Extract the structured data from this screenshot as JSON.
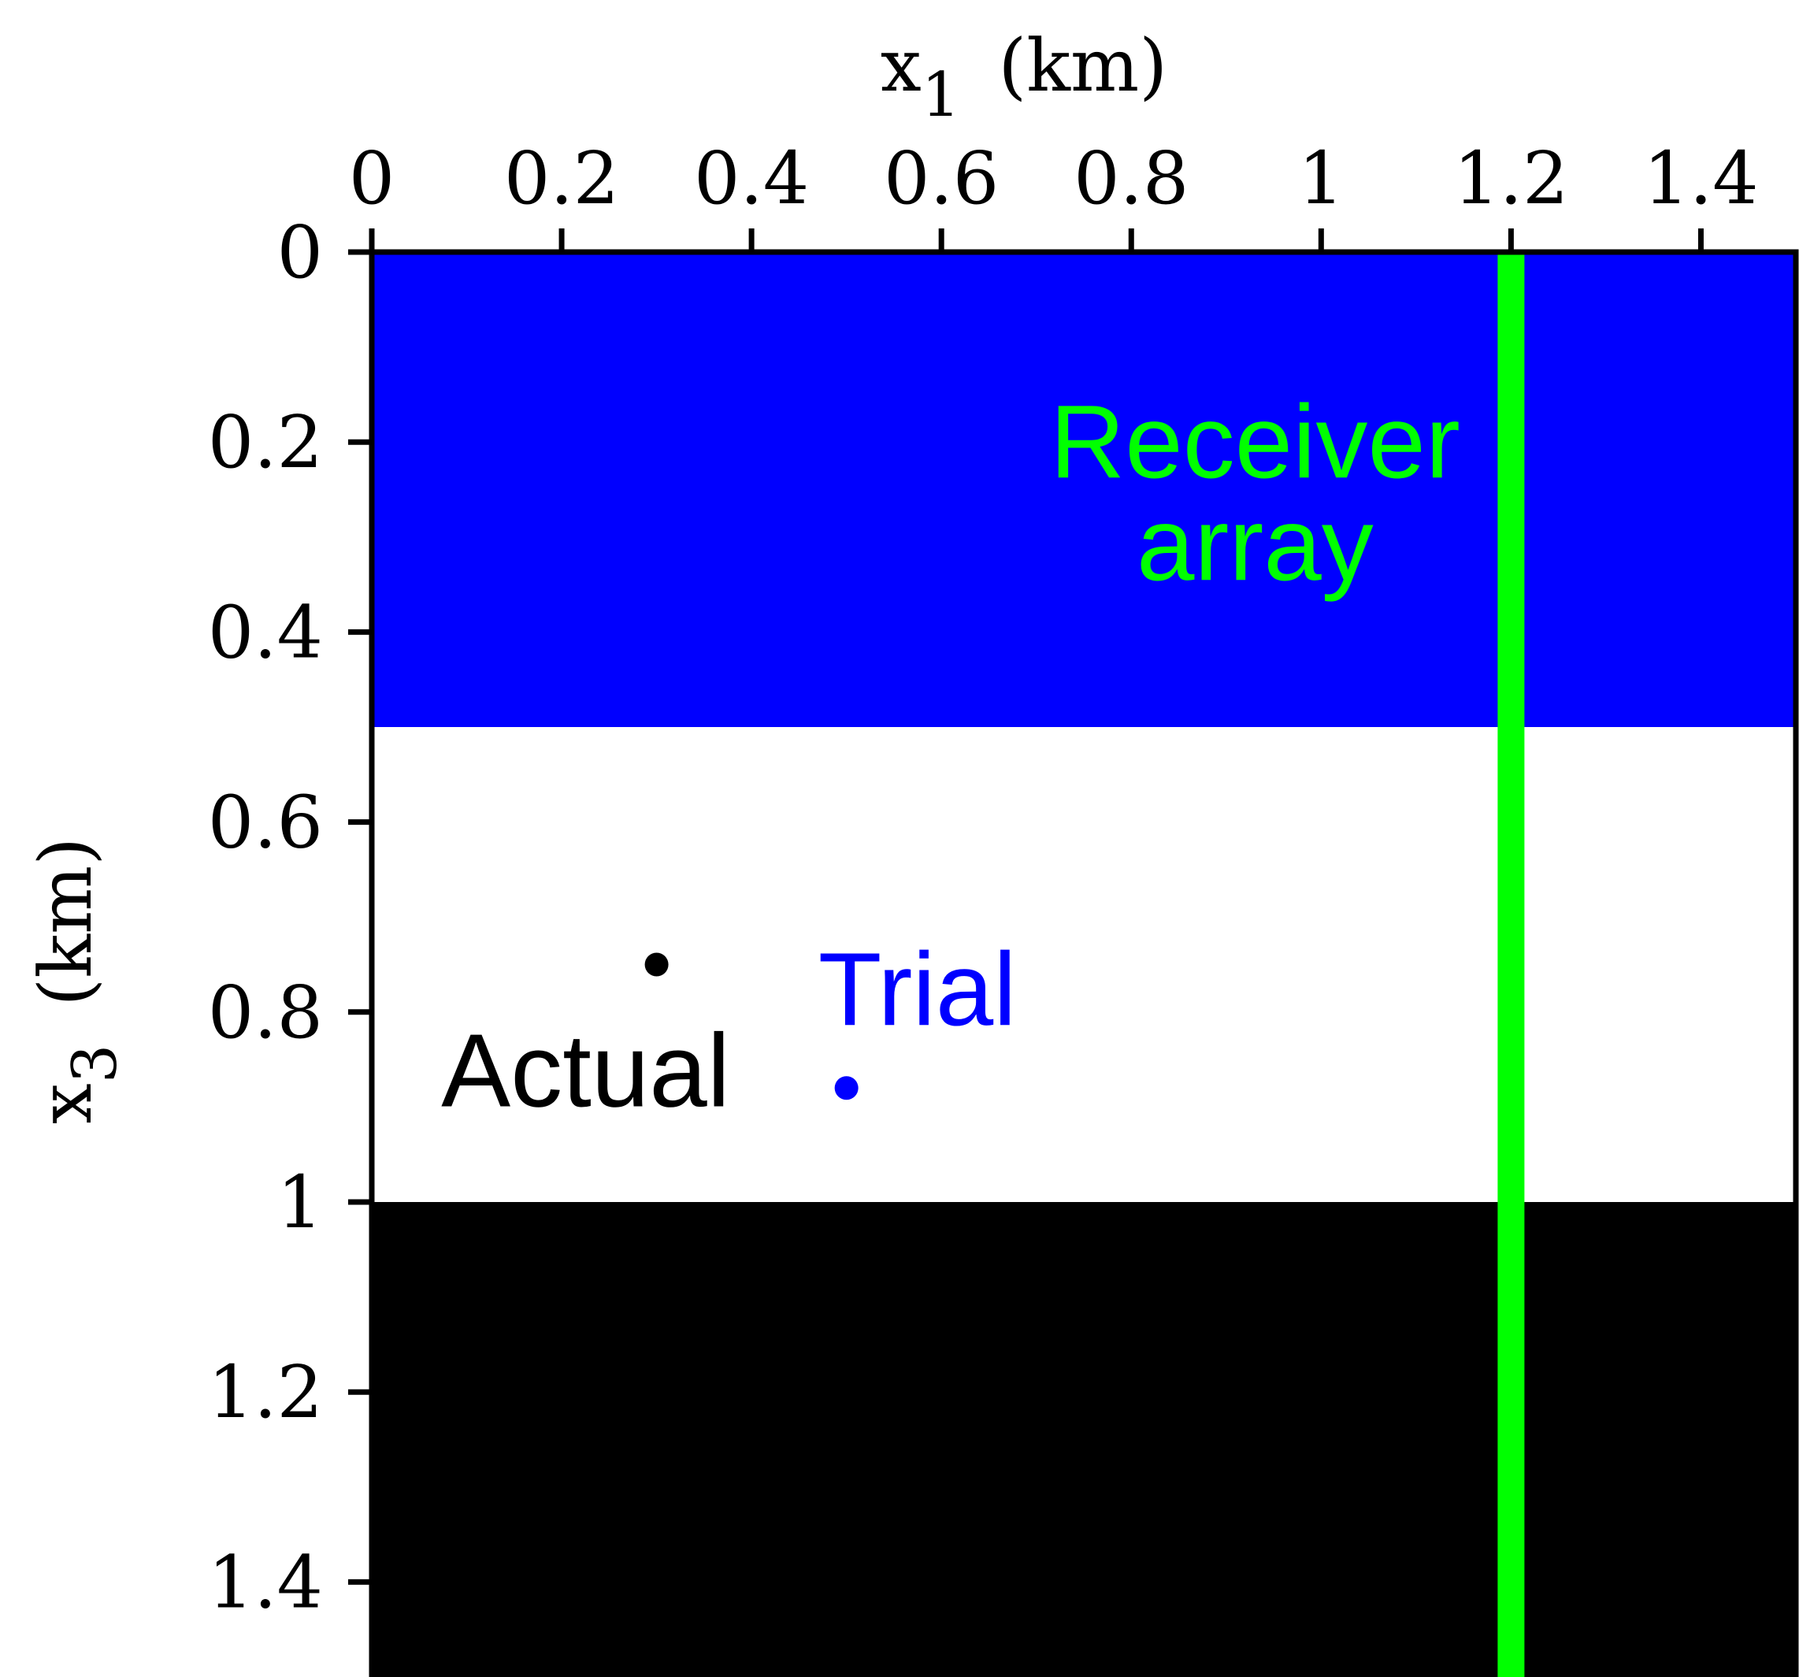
{
  "chart_data": {
    "type": "scatter",
    "title": "",
    "xlabel": "x",
    "xlabel_subscript": "1",
    "xlabel_unit": "(km)",
    "ylabel": "x",
    "ylabel_subscript": "3",
    "ylabel_unit": "(km)",
    "x_axis_position": "top",
    "y_axis_inverted": true,
    "xlim": [
      0,
      1.5
    ],
    "ylim": [
      0,
      1.5
    ],
    "x_ticks": [
      0,
      0.2,
      0.4,
      0.6,
      0.8,
      1,
      1.2,
      1.4
    ],
    "x_tick_labels": [
      "0",
      "0.2",
      "0.4",
      "0.6",
      "0.8",
      "1",
      "1.2",
      "1.4"
    ],
    "y_ticks": [
      0,
      0.2,
      0.4,
      0.6,
      0.8,
      1,
      1.2,
      1.4
    ],
    "y_tick_labels": [
      "0",
      "0.2",
      "0.4",
      "0.6",
      "0.8",
      "1",
      "1.2",
      "1.4"
    ],
    "grid": false,
    "layers": [
      {
        "x3_top": 0,
        "x3_bottom": 0.5,
        "color": "#0000ff"
      },
      {
        "x3_top": 0.5,
        "x3_bottom": 1.0,
        "color": "#ffffff"
      },
      {
        "x3_top": 1.0,
        "x3_bottom": 1.5,
        "color": "#000000"
      }
    ],
    "receiver_array": {
      "x1": 1.2,
      "color": "#00ff00",
      "label_line1": "Receiver",
      "label_line2": "array"
    },
    "points": [
      {
        "label": "Actual",
        "x": 0.3,
        "y": 0.75,
        "color": "#000000"
      },
      {
        "label": "Trial",
        "x": 0.5,
        "y": 0.88,
        "color": "#0000ff"
      }
    ]
  }
}
